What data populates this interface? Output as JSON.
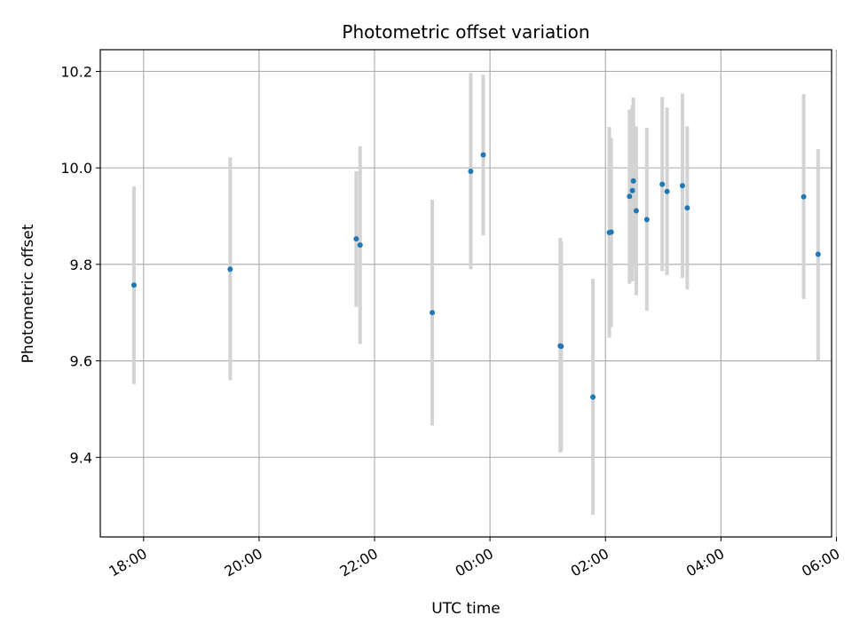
{
  "chart_data": {
    "type": "scatter",
    "title": "Photometric offset variation",
    "xlabel": "UTC time",
    "ylabel": "Photometric offset",
    "x_axis": "time",
    "xlim": [
      "17:15",
      "29:55"
    ],
    "ylim": [
      9.235,
      10.245
    ],
    "grid": true,
    "x_ticks": [
      {
        "t": "18:00",
        "label": "18:00"
      },
      {
        "t": "20:00",
        "label": "20:00"
      },
      {
        "t": "22:00",
        "label": "22:00"
      },
      {
        "t": "24:00",
        "label": "00:00"
      },
      {
        "t": "26:00",
        "label": "02:00"
      },
      {
        "t": "28:00",
        "label": "04:00"
      },
      {
        "t": "30:00",
        "label": "06:00"
      }
    ],
    "y_ticks": [
      9.4,
      9.6,
      9.8,
      10.0,
      10.2
    ],
    "y_tick_labels": [
      "9.4",
      "9.6",
      "9.8",
      "10.0",
      "10.2"
    ],
    "colors": {
      "points": "#1f77b4",
      "errorbars": "#d3d3d3",
      "grid": "#b0b0b0"
    },
    "points": [
      {
        "t": "17:50",
        "y": 9.757,
        "lo": 9.552,
        "hi": 9.962
      },
      {
        "t": "19:30",
        "y": 9.79,
        "lo": 9.56,
        "hi": 10.022
      },
      {
        "t": "21:41",
        "y": 9.853,
        "lo": 9.712,
        "hi": 9.993
      },
      {
        "t": "21:45",
        "y": 9.84,
        "lo": 9.635,
        "hi": 10.045
      },
      {
        "t": "23:00",
        "y": 9.7,
        "lo": 9.466,
        "hi": 9.934
      },
      {
        "t": "23:40",
        "y": 9.993,
        "lo": 9.79,
        "hi": 10.197
      },
      {
        "t": "23:53",
        "y": 10.027,
        "lo": 9.86,
        "hi": 10.193
      },
      {
        "t": "25:13",
        "y": 9.631,
        "lo": 9.41,
        "hi": 9.855
      },
      {
        "t": "25:14",
        "y": 9.63,
        "lo": 9.412,
        "hi": 9.848
      },
      {
        "t": "25:47",
        "y": 9.525,
        "lo": 9.281,
        "hi": 9.77
      },
      {
        "t": "26:04",
        "y": 9.866,
        "lo": 9.648,
        "hi": 10.085
      },
      {
        "t": "26:06",
        "y": 9.867,
        "lo": 9.67,
        "hi": 10.062
      },
      {
        "t": "26:25",
        "y": 9.941,
        "lo": 9.76,
        "hi": 10.121
      },
      {
        "t": "26:28",
        "y": 9.953,
        "lo": 9.765,
        "hi": 10.13
      },
      {
        "t": "26:29",
        "y": 9.973,
        "lo": 9.8,
        "hi": 10.146
      },
      {
        "t": "26:32",
        "y": 9.911,
        "lo": 9.736,
        "hi": 10.086
      },
      {
        "t": "26:43",
        "y": 9.893,
        "lo": 9.704,
        "hi": 10.083
      },
      {
        "t": "26:59",
        "y": 9.966,
        "lo": 9.786,
        "hi": 10.147
      },
      {
        "t": "27:04",
        "y": 9.951,
        "lo": 9.778,
        "hi": 10.125
      },
      {
        "t": "27:20",
        "y": 9.963,
        "lo": 9.772,
        "hi": 10.154
      },
      {
        "t": "27:25",
        "y": 9.917,
        "lo": 9.748,
        "hi": 10.086
      },
      {
        "t": "29:26",
        "y": 9.94,
        "lo": 9.728,
        "hi": 10.153
      },
      {
        "t": "29:41",
        "y": 9.821,
        "lo": 9.601,
        "hi": 10.039
      }
    ]
  }
}
